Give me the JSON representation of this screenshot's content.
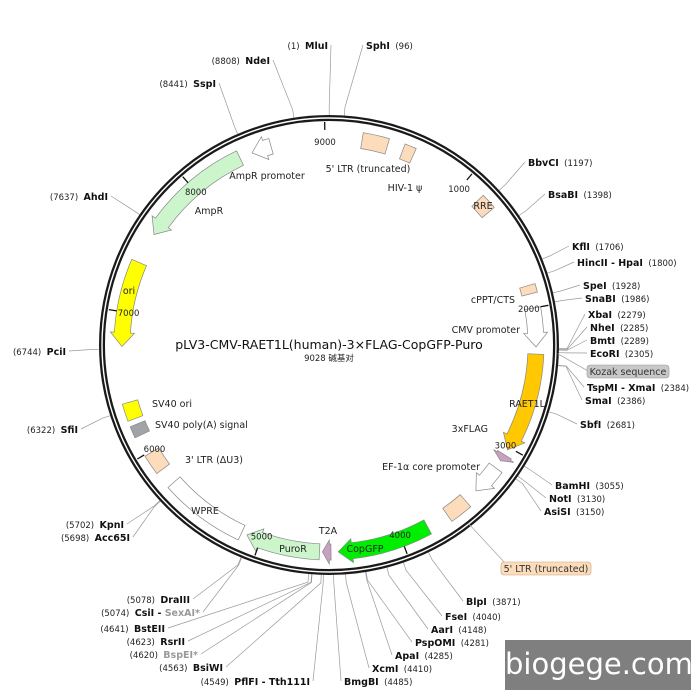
{
  "plasmid": {
    "name": "pLV3-CMV-RAET1L(human)-3×FLAG-CopGFP-Puro",
    "length_bp": 9028,
    "length_label": "9028 碱基对"
  },
  "ticks": [
    1000,
    2000,
    3000,
    4000,
    5000,
    6000,
    7000,
    8000,
    9000
  ],
  "features": [
    {
      "label": "AmpR promoter",
      "start": 8480,
      "end": 8620,
      "strand": -1,
      "shape": "arrow",
      "color": "#ffffff",
      "label_place": "inner"
    },
    {
      "label": "AmpR",
      "start": 7580,
      "end": 8390,
      "strand": -1,
      "shape": "arrow",
      "color": "#ccf5cc",
      "label_place": "inner"
    },
    {
      "label": "ori",
      "start": 6760,
      "end": 7360,
      "strand": -1,
      "shape": "arrow",
      "color": "#ffff00",
      "label_place": "on"
    },
    {
      "label": "SV40 ori",
      "start": 6250,
      "end": 6370,
      "strand": 0,
      "shape": "box",
      "color": "#ffff00",
      "label_place": "inner"
    },
    {
      "label": "SV40 poly(A) signal",
      "start": 6130,
      "end": 6210,
      "strand": 0,
      "shape": "box",
      "color": "#a0a4a8",
      "label_place": "inner2"
    },
    {
      "label": "3' LTR (ΔU3)",
      "start": 5850,
      "end": 5990,
      "strand": 0,
      "shape": "box",
      "color": "#fddcbc",
      "label_place": "inner"
    },
    {
      "label": "WPRE",
      "start": 5140,
      "end": 5730,
      "strand": 0,
      "shape": "box",
      "color": "#ffffff",
      "label_place": "on"
    },
    {
      "label": "PuroR",
      "start": 4580,
      "end": 5100,
      "strand": 1,
      "shape": "arrow",
      "color": "#ccf5cc",
      "label_place": "on"
    },
    {
      "label": "T2A",
      "start": 4500,
      "end": 4560,
      "strand": 1,
      "shape": "arrow",
      "color": "#c8a0c0",
      "label_place": "inner"
    },
    {
      "label": "CopGFP",
      "start": 3800,
      "end": 4450,
      "strand": 1,
      "shape": "arrow",
      "color": "#00ee00",
      "label_place": "on"
    },
    {
      "label": "",
      "start": 3480,
      "end": 3640,
      "strand": 0,
      "shape": "box",
      "color": "#fddcbc",
      "label_place": "none"
    },
    {
      "label": "EF-1α core promoter",
      "start": 3170,
      "end": 3380,
      "strand": 1,
      "shape": "arrow",
      "color": "#ffffff",
      "label_place": "inner"
    },
    {
      "label": "3xFLAG",
      "start": 3060,
      "end": 3110,
      "strand": 1,
      "shape": "arrow",
      "color": "#c8a0c0",
      "label_place": "inner"
    },
    {
      "label": "RAET1L",
      "start": 2320,
      "end": 3020,
      "strand": 1,
      "shape": "arrow",
      "color": "#ffc800",
      "label_place": "on"
    },
    {
      "label": "CMV promoter",
      "start": 2000,
      "end": 2270,
      "strand": 1,
      "shape": "arrow",
      "color": "#ffffff",
      "label_place": "inner"
    },
    {
      "label": "cPPT/CTS",
      "start": 1840,
      "end": 1900,
      "strand": 0,
      "shape": "box",
      "color": "#fddcbc",
      "label_place": "inner"
    },
    {
      "label": "RRE",
      "start": 1150,
      "end": 1260,
      "strand": 0,
      "shape": "box",
      "color": "#fddcbc",
      "label_place": "on"
    },
    {
      "label": "HIV-1 ψ",
      "start": 520,
      "end": 600,
      "strand": 0,
      "shape": "box",
      "color": "#fddcbc",
      "label_place": "inner"
    },
    {
      "label": "5' LTR (truncated)",
      "start": 230,
      "end": 410,
      "strand": 0,
      "shape": "box",
      "color": "#fddcbc",
      "label_place": "inner"
    }
  ],
  "callouts": {
    "kozak": "Kozak sequence",
    "ltr": "5' LTR (truncated)"
  },
  "sites": [
    {
      "name": "MluI",
      "pos": 1
    },
    {
      "name": "SphI",
      "pos": 96
    },
    {
      "name": "NdeI",
      "pos": 8808
    },
    {
      "name": "SspI",
      "pos": 8441
    },
    {
      "name": "AhdI",
      "pos": 7637
    },
    {
      "name": "PciI",
      "pos": 6744
    },
    {
      "name": "SfiI",
      "pos": 6322
    },
    {
      "name": "KpnI",
      "pos": 5702
    },
    {
      "name": "Acc65I",
      "pos": 5698
    },
    {
      "name": "DraIII",
      "pos": 5078
    },
    {
      "name": "CsiI",
      "pos": 5074,
      "also": "SexAI*",
      "also_dimmed": true
    },
    {
      "name": "BstEII",
      "pos": 4641
    },
    {
      "name": "RsrII",
      "pos": 4623
    },
    {
      "name": "BspEI*",
      "pos": 4620,
      "dimmed": true
    },
    {
      "name": "BsiWI",
      "pos": 4563
    },
    {
      "name": "PflFI - Tth111I",
      "pos": 4549
    },
    {
      "name": "BmgBI",
      "pos": 4485
    },
    {
      "name": "XcmI",
      "pos": 4410
    },
    {
      "name": "ApaI",
      "pos": 4285
    },
    {
      "name": "PspOMI",
      "pos": 4281
    },
    {
      "name": "AarI",
      "pos": 4148
    },
    {
      "name": "FseI",
      "pos": 4040
    },
    {
      "name": "BlpI",
      "pos": 3871
    },
    {
      "name": "AsiSI",
      "pos": 3150
    },
    {
      "name": "NotI",
      "pos": 3130
    },
    {
      "name": "BamHI",
      "pos": 3055
    },
    {
      "name": "SbfI",
      "pos": 2681
    },
    {
      "name": "SmaI",
      "pos": 2386
    },
    {
      "name": "TspMI - XmaI",
      "pos": 2384
    },
    {
      "name": "EcoRI",
      "pos": 2305
    },
    {
      "name": "BmtI",
      "pos": 2289
    },
    {
      "name": "NheI",
      "pos": 2285
    },
    {
      "name": "XbaI",
      "pos": 2279
    },
    {
      "name": "SnaBI",
      "pos": 1986
    },
    {
      "name": "SpeI",
      "pos": 1928
    },
    {
      "name": "HincII - HpaI",
      "pos": 1800
    },
    {
      "name": "KflI",
      "pos": 1706
    },
    {
      "name": "BsaBI",
      "pos": 1398
    },
    {
      "name": "BbvCI",
      "pos": 1197
    }
  ],
  "watermark": "biogege.com"
}
